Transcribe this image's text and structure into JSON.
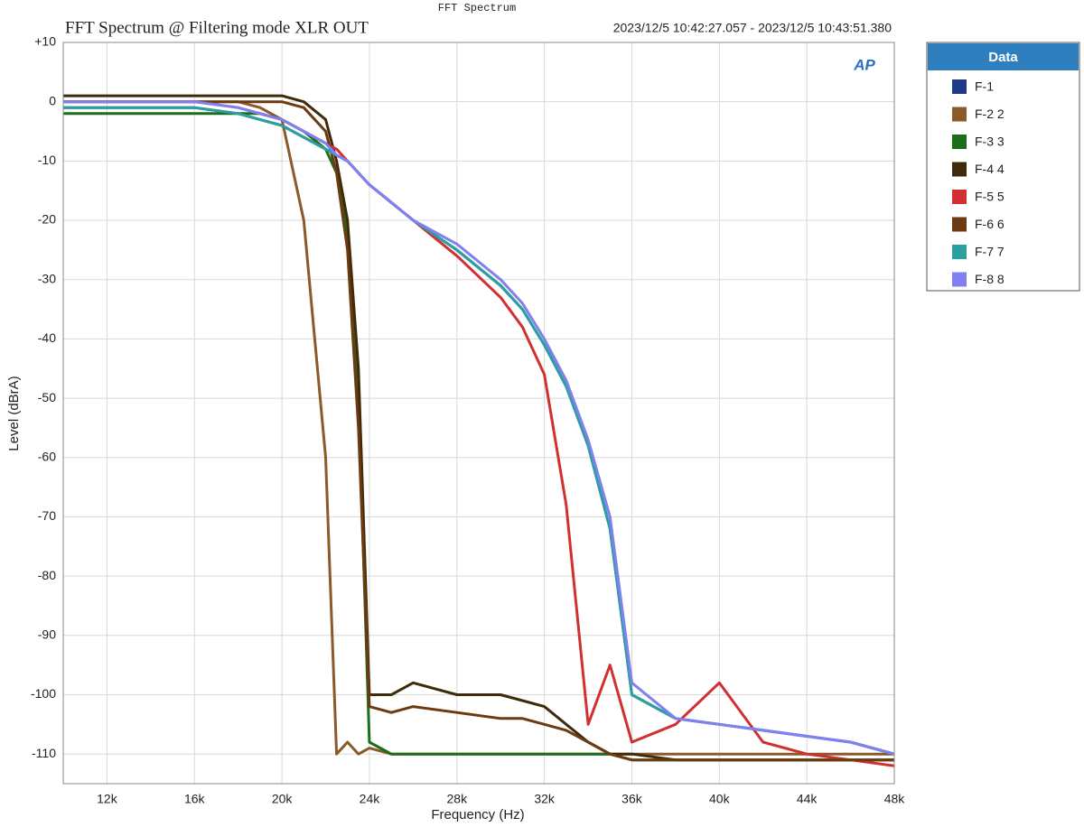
{
  "chart_data": {
    "type": "line",
    "top_title": "FFT Spectrum",
    "title": "FFT Spectrum  @ Filtering mode XLR OUT",
    "subtitle": "2023/12/5 10:42:27.057 - 2023/12/5 10:43:51.380",
    "logo": "AP",
    "x_label": "Frequency (Hz)",
    "y_label": "Level (dBrA)",
    "legend_title": "Data",
    "legend": "right",
    "grid": true,
    "xlim": [
      10000,
      48000
    ],
    "ylim": [
      -115,
      10
    ],
    "xticks": [
      {
        "value": 12000,
        "label": "12k"
      },
      {
        "value": 16000,
        "label": "16k"
      },
      {
        "value": 20000,
        "label": "20k"
      },
      {
        "value": 24000,
        "label": "24k"
      },
      {
        "value": 28000,
        "label": "28k"
      },
      {
        "value": 32000,
        "label": "32k"
      },
      {
        "value": 36000,
        "label": "36k"
      },
      {
        "value": 40000,
        "label": "40k"
      },
      {
        "value": 44000,
        "label": "44k"
      },
      {
        "value": 48000,
        "label": "48k"
      }
    ],
    "yticks": [
      {
        "value": 10,
        "label": "+10"
      },
      0,
      -10,
      -20,
      -30,
      -40,
      -50,
      -60,
      -70,
      -80,
      -90,
      -100,
      -110
    ],
    "x": [
      10000,
      12000,
      14000,
      16000,
      18000,
      19000,
      20000,
      21000,
      22000,
      22500,
      23000,
      23500,
      24000,
      25000,
      26000,
      28000,
      30000,
      31000,
      32000,
      33000,
      34000,
      35000,
      36000,
      38000,
      40000,
      42000,
      44000,
      46000,
      48000
    ],
    "series": [
      {
        "name": "F-1",
        "color": "#1f3a8a",
        "values": [
          -1,
          -1,
          -1,
          -1,
          -2,
          -3,
          -4,
          -6,
          -8,
          -9,
          -10,
          -12,
          -14,
          -17,
          -20,
          -25,
          -31,
          -35,
          -41,
          -48,
          -58,
          -72,
          -100,
          -104,
          -105,
          -106,
          -107,
          -108,
          -110
        ]
      },
      {
        "name": "F-2 2",
        "color": "#8a5a2a",
        "values": [
          0,
          0,
          0,
          0,
          0,
          -1,
          -3,
          -20,
          -60,
          -110,
          -108,
          -110,
          -109,
          -110,
          -110,
          -110,
          -110,
          -110,
          -110,
          -110,
          -110,
          -110,
          -110,
          -110,
          -110,
          -110,
          -110,
          -110,
          -110
        ]
      },
      {
        "name": "F-3 3",
        "color": "#1a6e1a",
        "values": [
          -2,
          -2,
          -2,
          -2,
          -2,
          -2,
          -3,
          -5,
          -8,
          -12,
          -22,
          -50,
          -108,
          -110,
          -110,
          -110,
          -110,
          -110,
          -110,
          -110,
          -110,
          -110,
          -111,
          -111,
          -111,
          -111,
          -111,
          -111,
          -111
        ]
      },
      {
        "name": "F-4 4",
        "color": "#3f2a0a",
        "values": [
          1,
          1,
          1,
          1,
          1,
          1,
          1,
          0,
          -3,
          -10,
          -20,
          -45,
          -100,
          -100,
          -98,
          -100,
          -100,
          -101,
          -102,
          -105,
          -108,
          -110,
          -110,
          -111,
          -111,
          -111,
          -111,
          -111,
          -111
        ]
      },
      {
        "name": "F-5 5",
        "color": "#d03030",
        "values": [
          0,
          0,
          0,
          0,
          -1,
          -2,
          -3,
          -5,
          -7,
          -8,
          -10,
          -12,
          -14,
          -17,
          -20,
          -26,
          -33,
          -38,
          -46,
          -68,
          -105,
          -95,
          -108,
          -105,
          -98,
          -108,
          -110,
          -111,
          -112
        ]
      },
      {
        "name": "F-6 6",
        "color": "#6b3a10",
        "values": [
          0,
          0,
          0,
          0,
          0,
          0,
          0,
          -1,
          -5,
          -12,
          -25,
          -55,
          -102,
          -103,
          -102,
          -103,
          -104,
          -104,
          -105,
          -106,
          -108,
          -110,
          -111,
          -111,
          -111,
          -111,
          -111,
          -111,
          -111
        ]
      },
      {
        "name": "F-7 7",
        "color": "#2aa0a0",
        "values": [
          -1,
          -1,
          -1,
          -1,
          -2,
          -3,
          -4,
          -6,
          -8,
          -9,
          -10,
          -12,
          -14,
          -17,
          -20,
          -25,
          -31,
          -35,
          -41,
          -48,
          -58,
          -72,
          -100,
          -104,
          -105,
          -106,
          -107,
          -108,
          -110
        ]
      },
      {
        "name": "F-8 8",
        "color": "#8080f0",
        "values": [
          0,
          0,
          0,
          0,
          -1,
          -2,
          -3,
          -5,
          -7,
          -9,
          -10,
          -12,
          -14,
          -17,
          -20,
          -24,
          -30,
          -34,
          -40,
          -47,
          -57,
          -70,
          -98,
          -104,
          -105,
          -106,
          -107,
          -108,
          -110
        ]
      }
    ]
  }
}
